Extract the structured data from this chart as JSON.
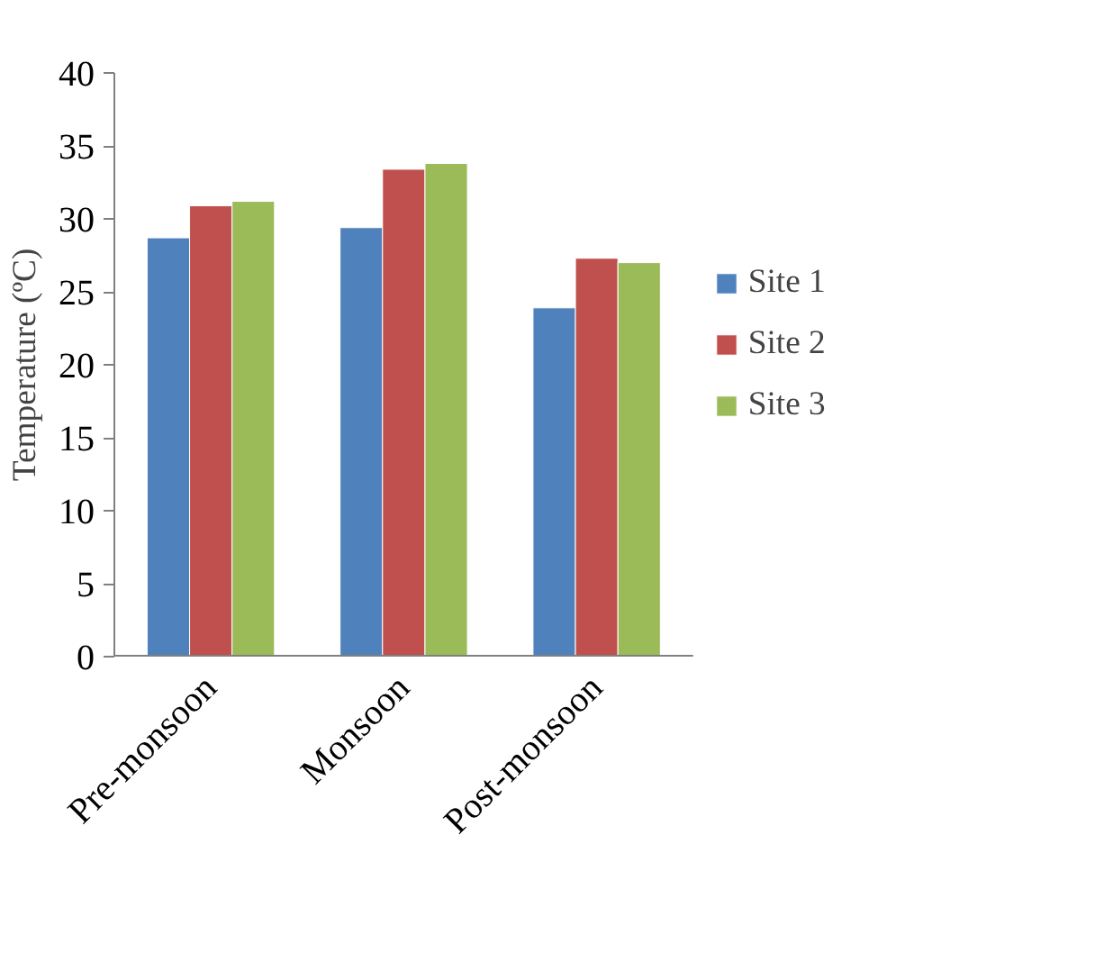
{
  "chart_data": {
    "type": "bar",
    "ylabel": "Temperature (ºC)",
    "categories": [
      "Pre-monsoon",
      "Monsoon",
      "Post-monsoon"
    ],
    "series": [
      {
        "name": "Site 1",
        "color": "#4f81bd",
        "values": [
          28.7,
          29.4,
          23.9
        ]
      },
      {
        "name": "Site 2",
        "color": "#c0504d",
        "values": [
          30.9,
          33.4,
          27.3
        ]
      },
      {
        "name": "Site 3",
        "color": "#9bbb59",
        "values": [
          31.2,
          33.8,
          27.0
        ]
      }
    ],
    "ylim": [
      0,
      40
    ],
    "yticks": [
      0,
      5,
      10,
      15,
      20,
      25,
      30,
      35,
      40
    ],
    "grid": false,
    "legend": "right"
  }
}
